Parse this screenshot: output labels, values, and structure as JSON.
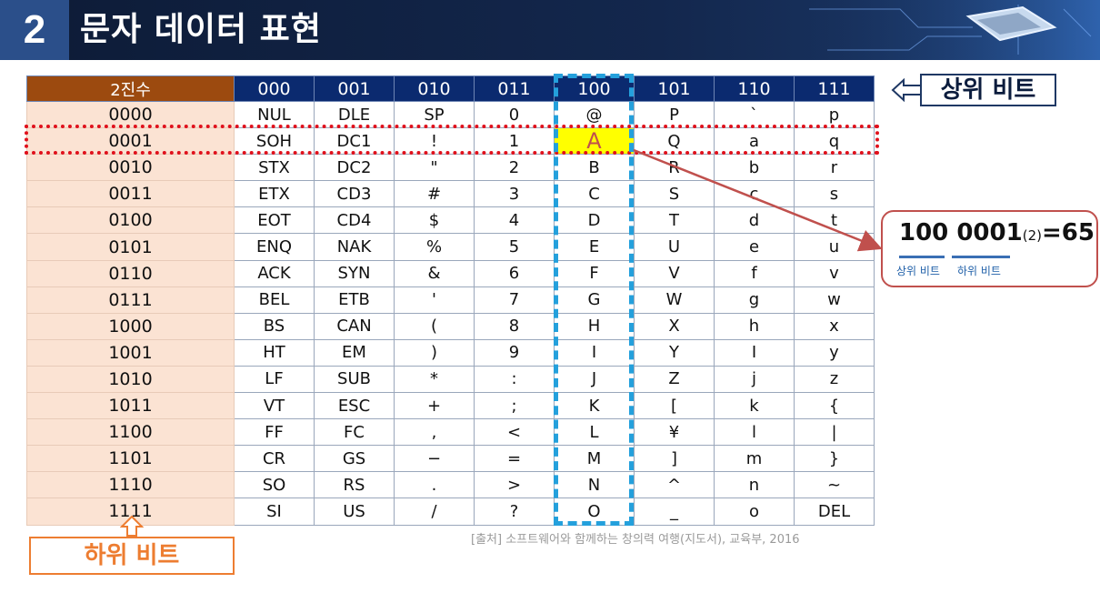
{
  "header": {
    "number": "2",
    "title": "문자 데이터 표현"
  },
  "table": {
    "corner": "2진수",
    "columns": [
      "000",
      "001",
      "010",
      "011",
      "100",
      "101",
      "110",
      "111"
    ],
    "rows": [
      {
        "bin": "0000",
        "cells": [
          "NUL",
          "DLE",
          "SP",
          "0",
          "@",
          "P",
          "`",
          "p"
        ]
      },
      {
        "bin": "0001",
        "cells": [
          "SOH",
          "DC1",
          "!",
          "1",
          "A",
          "Q",
          "a",
          "q"
        ]
      },
      {
        "bin": "0010",
        "cells": [
          "STX",
          "DC2",
          "\"",
          "2",
          "B",
          "R",
          "b",
          "r"
        ]
      },
      {
        "bin": "0011",
        "cells": [
          "ETX",
          "CD3",
          "#",
          "3",
          "C",
          "S",
          "c",
          "s"
        ]
      },
      {
        "bin": "0100",
        "cells": [
          "EOT",
          "CD4",
          "$",
          "4",
          "D",
          "T",
          "d",
          "t"
        ]
      },
      {
        "bin": "0101",
        "cells": [
          "ENQ",
          "NAK",
          "%",
          "5",
          "E",
          "U",
          "e",
          "u"
        ]
      },
      {
        "bin": "0110",
        "cells": [
          "ACK",
          "SYN",
          "&",
          "6",
          "F",
          "V",
          "f",
          "v"
        ]
      },
      {
        "bin": "0111",
        "cells": [
          "BEL",
          "ETB",
          "'",
          "7",
          "G",
          "W",
          "g",
          "w"
        ]
      },
      {
        "bin": "1000",
        "cells": [
          "BS",
          "CAN",
          "(",
          "8",
          "H",
          "X",
          "h",
          "x"
        ]
      },
      {
        "bin": "1001",
        "cells": [
          "HT",
          "EM",
          ")",
          "9",
          "I",
          "Y",
          "I",
          "y"
        ]
      },
      {
        "bin": "1010",
        "cells": [
          "LF",
          "SUB",
          "*",
          ":",
          "J",
          "Z",
          "j",
          "z"
        ]
      },
      {
        "bin": "1011",
        "cells": [
          "VT",
          "ESC",
          "+",
          ";",
          "K",
          "[",
          "k",
          "{"
        ]
      },
      {
        "bin": "1100",
        "cells": [
          "FF",
          "FC",
          ",",
          "<",
          "L",
          "¥",
          "l",
          "|"
        ]
      },
      {
        "bin": "1101",
        "cells": [
          "CR",
          "GS",
          "−",
          "=",
          "M",
          "]",
          "m",
          "}"
        ]
      },
      {
        "bin": "1110",
        "cells": [
          "SO",
          "RS",
          ".",
          ">",
          "N",
          "^",
          "n",
          "~"
        ]
      },
      {
        "bin": "1111",
        "cells": [
          "SI",
          "US",
          "/",
          "?",
          "O",
          "_",
          "o",
          "DEL"
        ]
      }
    ]
  },
  "upper_bit_label": "상위 비트",
  "lower_bit_label": "하위 비트",
  "callout": {
    "upper": "100",
    "lower": "0001",
    "base": "(2)",
    "result": "=65",
    "upper_label": "상위 비트",
    "lower_label": "하위 비트"
  },
  "source": "[출처] 소프트웨어와 함께하는 창의력 여행(지도서), 교육부, 2016",
  "colors": {
    "header_bg": "#13274d",
    "table_header": "#0b2a6f",
    "corner": "#9c4a0f",
    "row_header": "#fbe3d3",
    "highlight": "#ffff00",
    "row_outline": "#e0111c",
    "col_outline": "#24a0dc",
    "lower_label": "#ed7d31"
  },
  "highlight_cell": {
    "row_bin": "0001",
    "column": "100"
  }
}
